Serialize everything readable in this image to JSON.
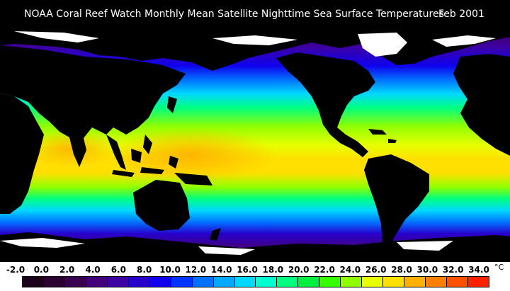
{
  "title": {
    "text": "NOAA Coral Reef Watch Monthly Mean Satellite Nighttime Sea Surface Temperatures",
    "date": "Feb 2001"
  },
  "legend": {
    "ticks": [
      "-2.0",
      "0.0",
      "2.0",
      "4.0",
      "6.0",
      "8.0",
      "10.0",
      "12.0",
      "14.0",
      "16.0",
      "18.0",
      "20.0",
      "22.0",
      "24.0",
      "26.0",
      "28.0",
      "30.0",
      "32.0",
      "34.0"
    ],
    "unit": "°C",
    "colors": [
      "#1a0018",
      "#2b0030",
      "#3a0050",
      "#42007a",
      "#3d00a3",
      "#2800cc",
      "#1000ee",
      "#0033ff",
      "#0070ff",
      "#00a8ff",
      "#00d8ff",
      "#00ffd0",
      "#00ff80",
      "#00f040",
      "#33ff00",
      "#90ff00",
      "#e8ff00",
      "#ffe000",
      "#ffb000",
      "#ff8000",
      "#ff5000",
      "#ff2000"
    ]
  },
  "map": {
    "land_color": "#000000",
    "ice_color": "#ffffff"
  }
}
